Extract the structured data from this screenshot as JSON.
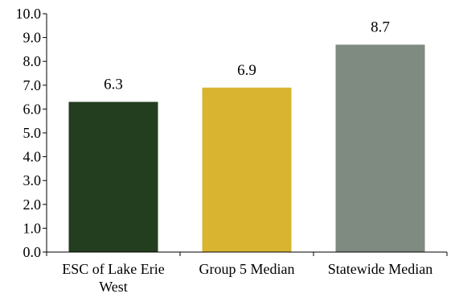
{
  "chart_data": {
    "type": "bar",
    "categories": [
      "ESC of Lake Erie West",
      "Group 5 Median",
      "Statewide Median"
    ],
    "category_label_lines": [
      [
        "ESC of Lake Erie",
        "West"
      ],
      [
        "Group 5 Median"
      ],
      [
        "Statewide Median"
      ]
    ],
    "values": [
      6.3,
      6.9,
      8.7
    ],
    "data_labels": [
      "6.3",
      "6.9",
      "8.7"
    ],
    "bar_colors": [
      "#233e1e",
      "#d9b431",
      "#7f8a80"
    ],
    "ylim": [
      0,
      10
    ],
    "yticks": [
      "0.0",
      "1.0",
      "2.0",
      "3.0",
      "4.0",
      "5.0",
      "6.0",
      "7.0",
      "8.0",
      "9.0",
      "10.0"
    ],
    "grid": false,
    "title": "",
    "xlabel": "",
    "ylabel": ""
  }
}
